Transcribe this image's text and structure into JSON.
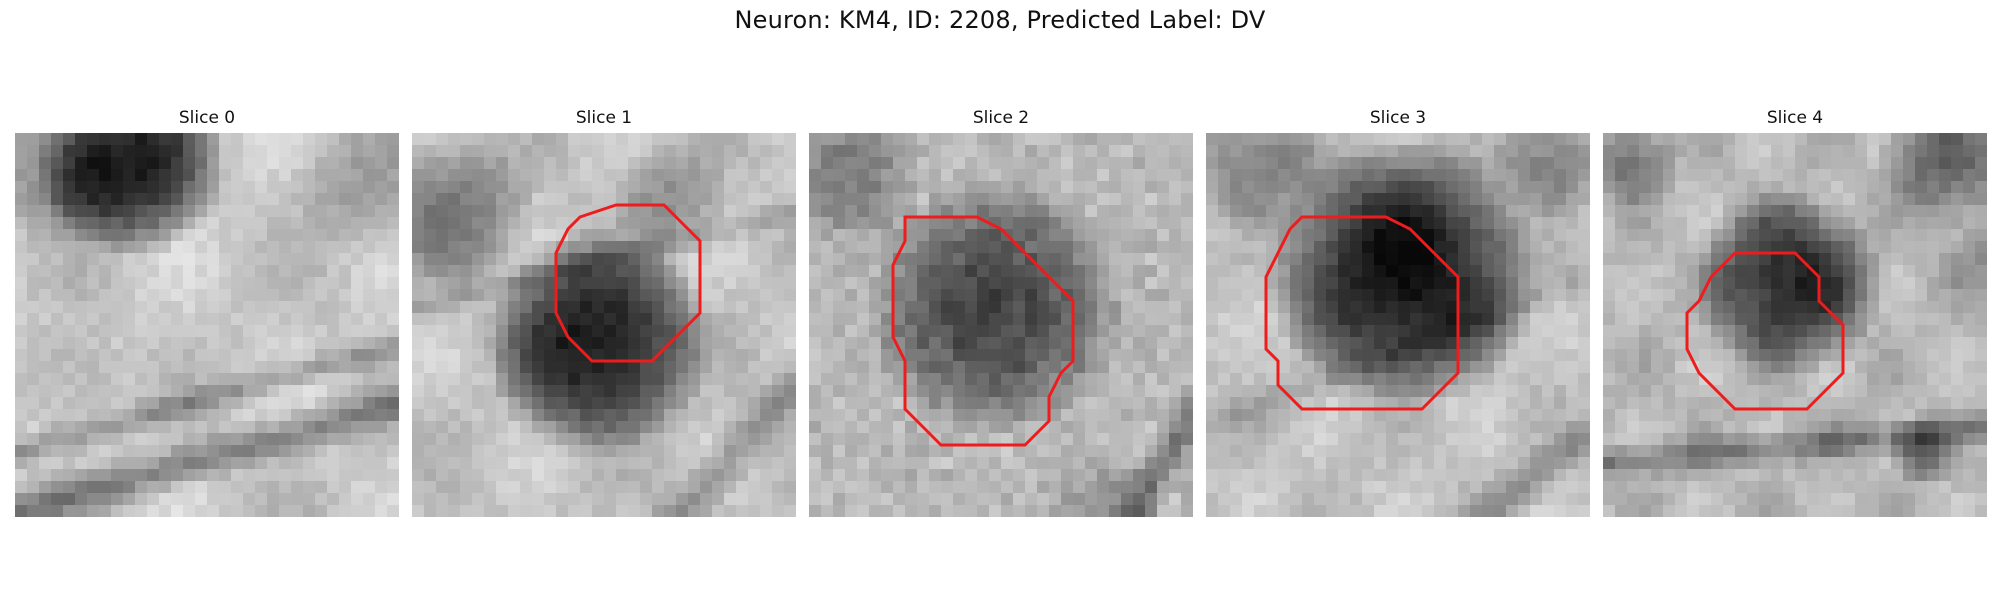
{
  "figure": {
    "title": "Neuron: KM4, ID: 2208, Predicted Label: DV",
    "contour_color": "#ee1c1c",
    "colormap": "grayscale",
    "panels": [
      {
        "title": "Slice 0",
        "has_contour": false
      },
      {
        "title": "Slice 1",
        "has_contour": true
      },
      {
        "title": "Slice 2",
        "has_contour": true
      },
      {
        "title": "Slice 3",
        "has_contour": true
      },
      {
        "title": "Slice 4",
        "has_contour": true
      }
    ]
  }
}
